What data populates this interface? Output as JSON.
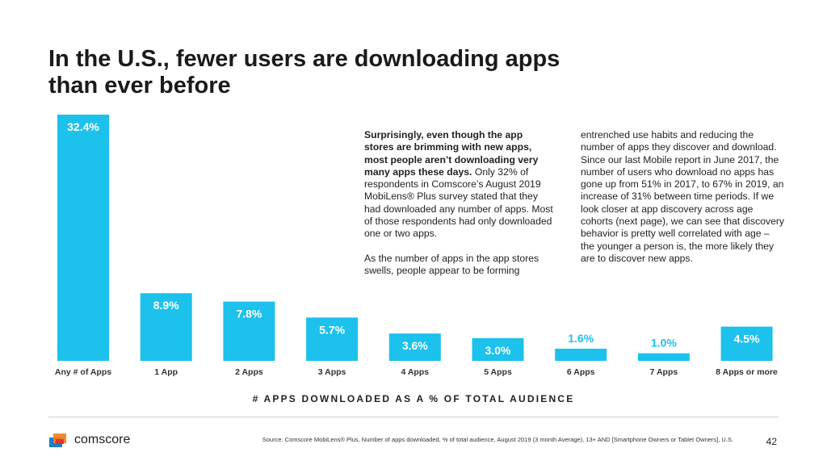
{
  "title_line1": "In the U.S., fewer users are downloading apps",
  "title_line2": "than ever before",
  "text_col1": {
    "bold": "Surprisingly, even though the app stores are brimming with new apps, most people aren’t downloading very many apps these days.",
    "rest": " Only 32% of respondents in Comscore’s August 2019 MobiLens® Plus survey stated that they had downloaded any number of apps. Most of those respondents had only downloaded one or two apps.",
    "para2": "As the number of apps in the app stores swells, people appear to be forming"
  },
  "text_col2": "entrenched use habits and reducing the number of apps they discover and download. Since our last Mobile report in June 2017, the number of users who download no apps has gone up from 51% in 2017, to 67% in 2019, an increase of 31% between time periods. If we look closer at app discovery across age cohorts (next page), we can see that discovery behavior is pretty well correlated with age – the younger a person is, the more likely they are to discover new apps.",
  "chart_data": {
    "type": "bar",
    "categories": [
      "Any # of Apps",
      "1 App",
      "2 Apps",
      "3 Apps",
      "4 Apps",
      "5 Apps",
      "6 Apps",
      "7 Apps",
      "8 Apps or more"
    ],
    "values": [
      32.4,
      8.9,
      7.8,
      5.7,
      3.6,
      3.0,
      1.6,
      1.0,
      4.5
    ],
    "value_labels": [
      "32.4%",
      "8.9%",
      "7.8%",
      "5.7%",
      "3.6%",
      "3.0%",
      "1.6%",
      "1.0%",
      "4.5%"
    ],
    "xlabel": "# APPS DOWNLOADED AS A % OF TOTAL AUDIENCE",
    "ylabel": "",
    "ylim": [
      0,
      32.4
    ],
    "bar_color": "#1cc1ec",
    "label_inside_color": "#ffffff",
    "label_outside_color": "#1cc1ec"
  },
  "footer": {
    "logo_text": "comscore",
    "source": "Source: Comscore MobiLens® Plus, Number of apps downloaded, % of total audience, August 2019 (3 month Average), 13+ AND [Smartphone Owners or Tablet Owners], U.S.",
    "page_number": "42"
  },
  "colors": {
    "logo_blue": "#1e7fc2",
    "logo_orange": "#f27b21",
    "logo_red": "#e2332a"
  }
}
